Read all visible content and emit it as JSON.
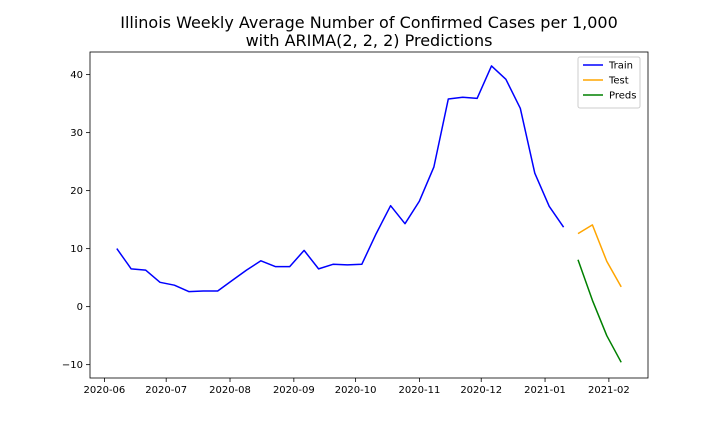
{
  "chart_data": {
    "type": "line",
    "title": "Illinois Weekly Average Number of Confirmed Cases per 1,000\nwith ARIMA(2, 2, 2) Predictions",
    "xlabel": "",
    "ylabel": "",
    "x_axis_type": "date",
    "xlim": [
      "2020-05-25",
      "2021-02-20"
    ],
    "ylim": [
      -12.3,
      43.9
    ],
    "xticks": [
      "2020-06-01",
      "2020-07-01",
      "2020-08-01",
      "2020-09-01",
      "2020-10-01",
      "2020-11-01",
      "2020-12-01",
      "2021-01-01",
      "2021-02-01"
    ],
    "xtick_labels": [
      "2020-06",
      "2020-07",
      "2020-08",
      "2020-09",
      "2020-10",
      "2020-11",
      "2020-12",
      "2021-01",
      "2021-02"
    ],
    "yticks": [
      -10,
      0,
      10,
      20,
      30,
      40
    ],
    "ytick_labels": [
      "−10",
      "0",
      "10",
      "20",
      "30",
      "40"
    ],
    "grid": false,
    "legend_position": "top-right",
    "series": [
      {
        "name": "Train",
        "color": "#0000ff",
        "points": [
          [
            "2020-06-07",
            10.0
          ],
          [
            "2020-06-14",
            6.5
          ],
          [
            "2020-06-21",
            6.3
          ],
          [
            "2020-06-28",
            4.2
          ],
          [
            "2020-07-05",
            3.7
          ],
          [
            "2020-07-12",
            2.6
          ],
          [
            "2020-07-19",
            2.7
          ],
          [
            "2020-07-26",
            2.7
          ],
          [
            "2020-08-02",
            4.5
          ],
          [
            "2020-08-09",
            6.3
          ],
          [
            "2020-08-16",
            7.9
          ],
          [
            "2020-08-23",
            6.9
          ],
          [
            "2020-08-30",
            6.9
          ],
          [
            "2020-09-06",
            9.7
          ],
          [
            "2020-09-13",
            6.5
          ],
          [
            "2020-09-20",
            7.3
          ],
          [
            "2020-09-27",
            7.2
          ],
          [
            "2020-10-04",
            7.3
          ],
          [
            "2020-10-11",
            12.6
          ],
          [
            "2020-10-18",
            17.4
          ],
          [
            "2020-10-25",
            14.3
          ],
          [
            "2020-11-01",
            18.2
          ],
          [
            "2020-11-08",
            24.1
          ],
          [
            "2020-11-15",
            35.8
          ],
          [
            "2020-11-22",
            36.1
          ],
          [
            "2020-11-29",
            35.9
          ],
          [
            "2020-12-06",
            41.5
          ],
          [
            "2020-12-13",
            39.2
          ],
          [
            "2020-12-20",
            34.2
          ],
          [
            "2020-12-27",
            23.0
          ],
          [
            "2021-01-03",
            17.3
          ],
          [
            "2021-01-10",
            13.7
          ]
        ]
      },
      {
        "name": "Test",
        "color": "#ffa500",
        "points": [
          [
            "2021-01-17",
            12.6
          ],
          [
            "2021-01-24",
            14.1
          ],
          [
            "2021-01-31",
            7.8
          ],
          [
            "2021-02-07",
            3.4
          ]
        ]
      },
      {
        "name": "Preds",
        "color": "#008000",
        "points": [
          [
            "2021-01-17",
            8.1
          ],
          [
            "2021-01-24",
            1.1
          ],
          [
            "2021-01-31",
            -5.0
          ],
          [
            "2021-02-07",
            -9.6
          ]
        ]
      }
    ]
  }
}
